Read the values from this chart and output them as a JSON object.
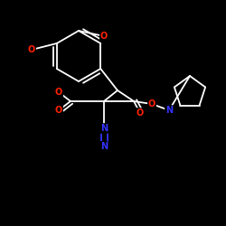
{
  "background_color": "#000000",
  "bond_color": "#ffffff",
  "bond_width": 1.3,
  "O_color": "#ff2200",
  "N_color": "#3333ff",
  "figsize": [
    2.5,
    2.5
  ],
  "dpi": 100,
  "xlim": [
    0,
    250
  ],
  "ylim": [
    0,
    250
  ]
}
